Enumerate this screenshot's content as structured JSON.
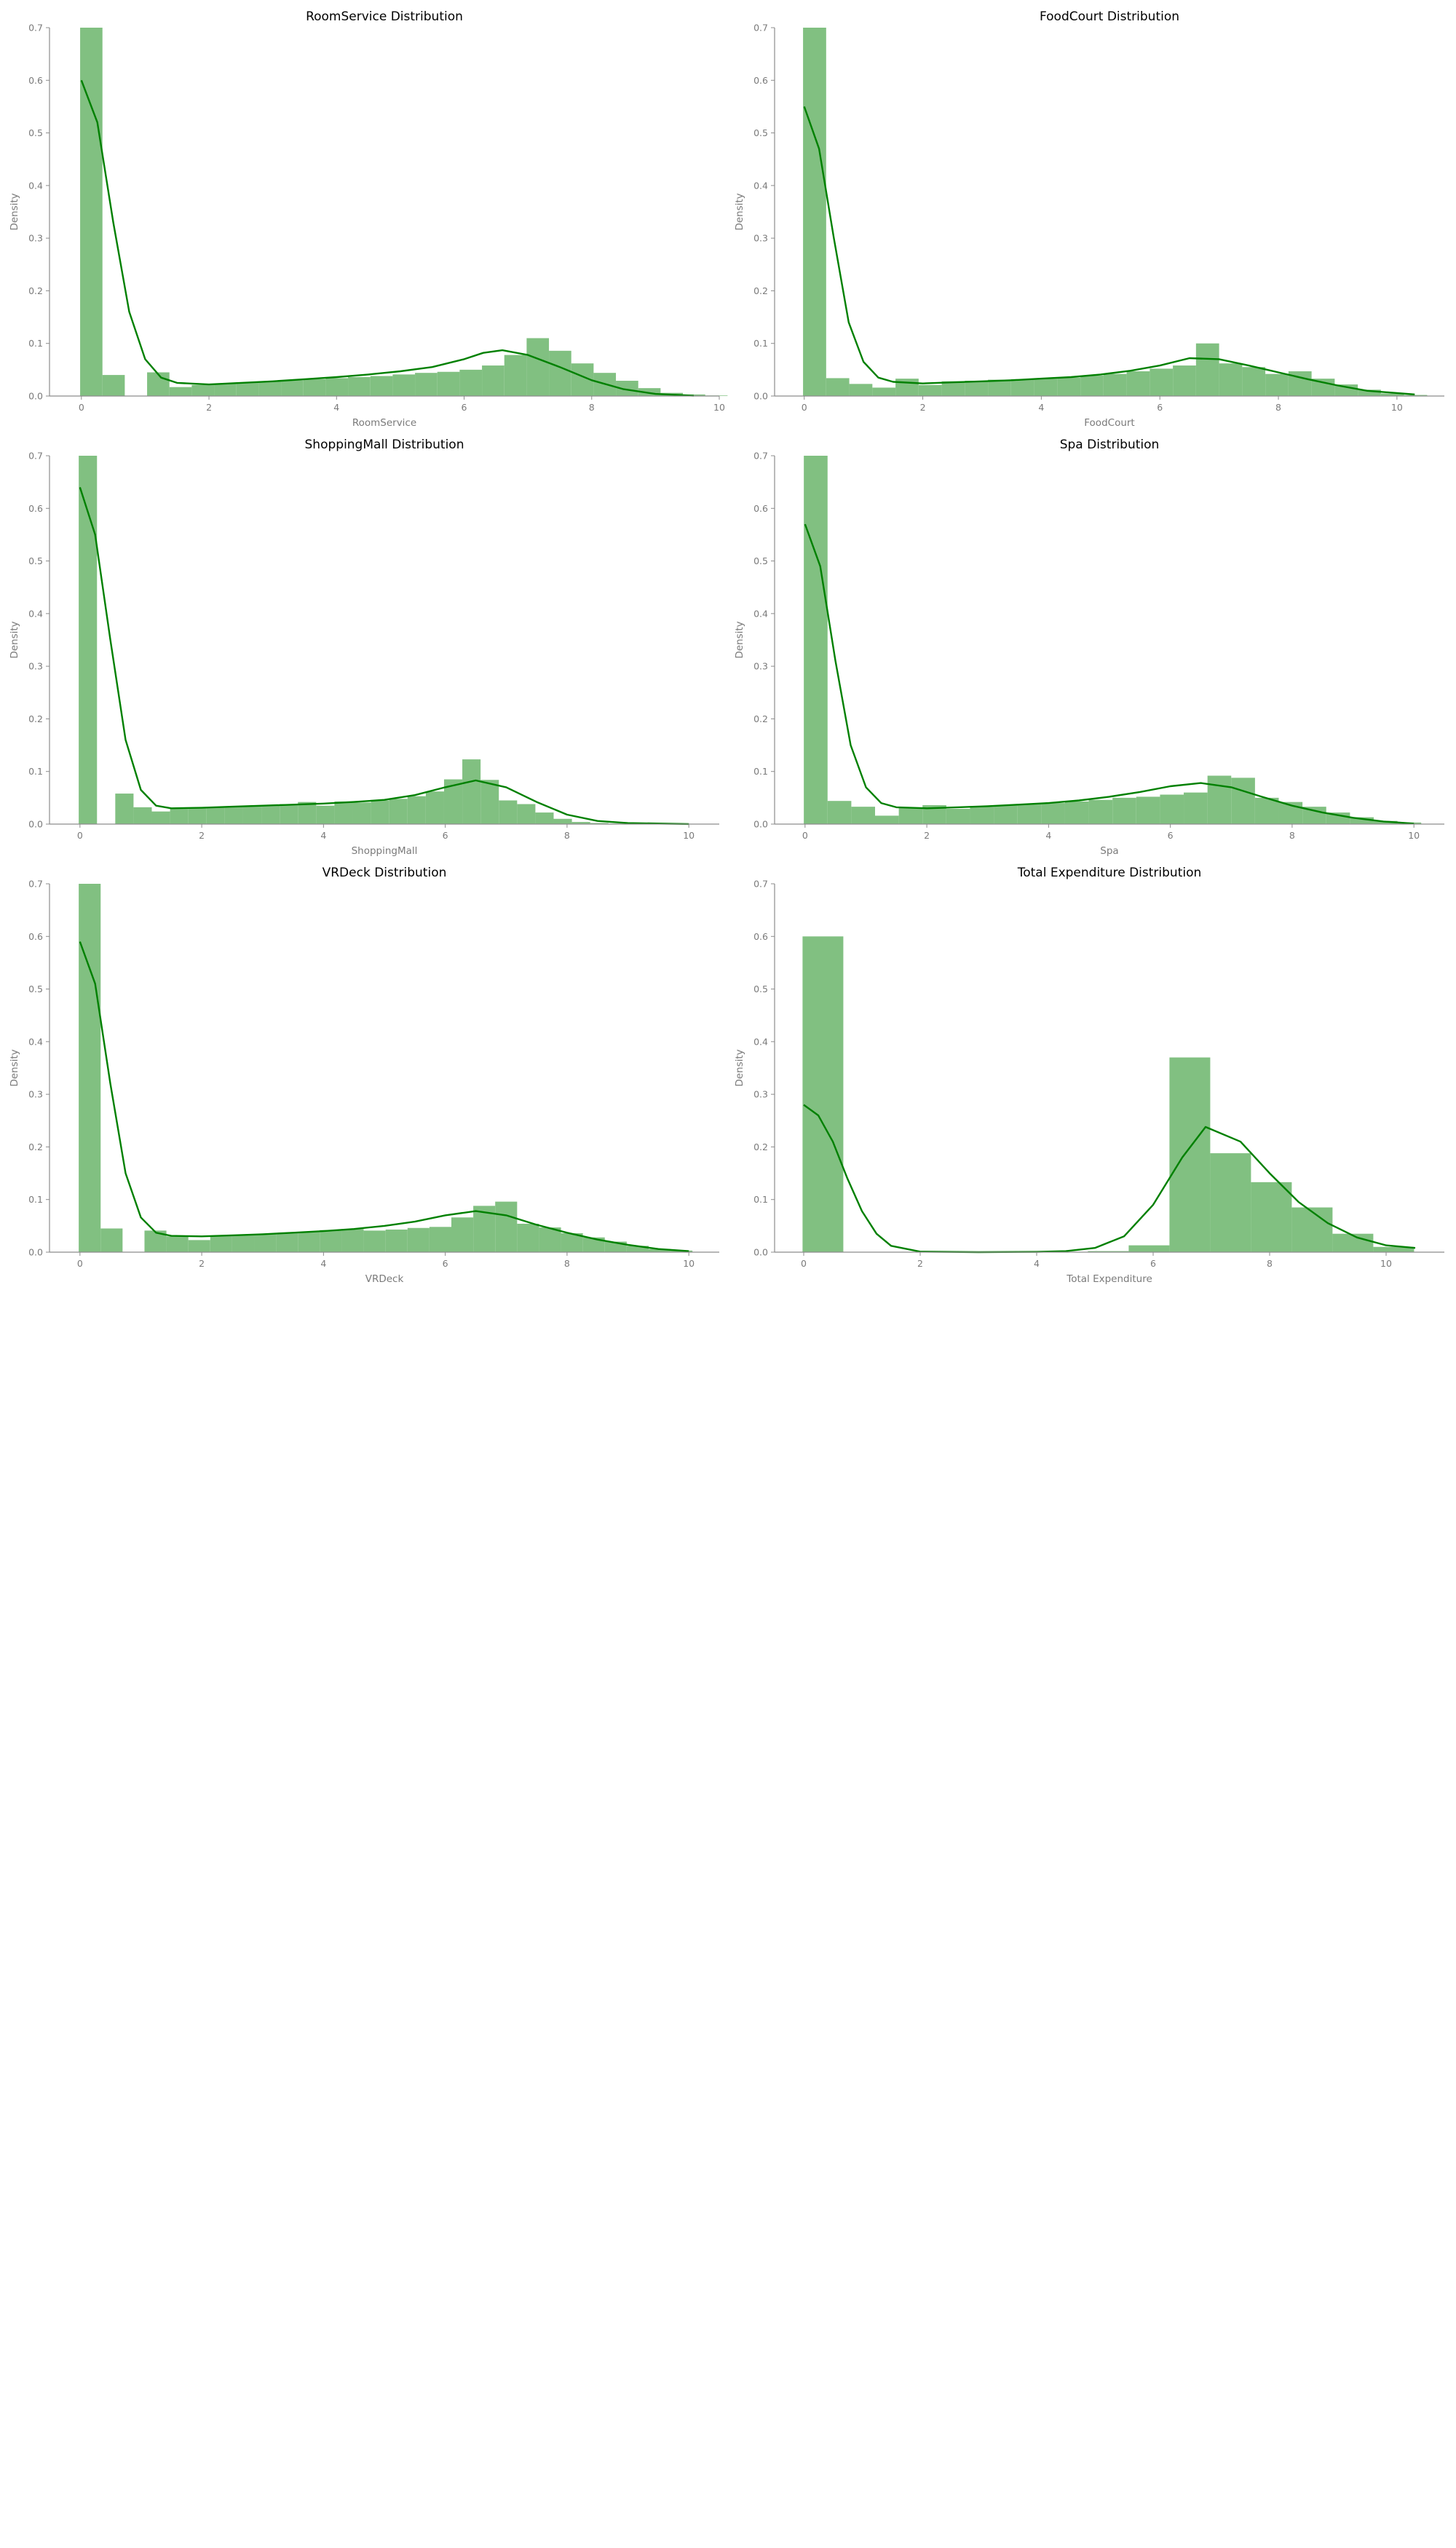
{
  "colors": {
    "bar": "#81c081",
    "kde": "#008000",
    "axis": "#8c8c8c",
    "text": "#7a7a7a",
    "title": "#000000"
  },
  "chart_data": [
    {
      "type": "bar",
      "title": "RoomService Distribution",
      "xlabel": "RoomService",
      "ylabel": "Density",
      "xlim": [
        -0.5,
        10
      ],
      "ylim": [
        0,
        0.7
      ],
      "xticks": [
        0,
        2,
        4,
        6,
        8,
        10
      ],
      "yticks": [
        0.0,
        0.1,
        0.2,
        0.3,
        0.4,
        0.5,
        0.6,
        0.7
      ],
      "bin_width": 0.35,
      "bin_start": -0.02,
      "densities": [
        0.7,
        0.04,
        0,
        0.045,
        0.017,
        0.021,
        0.024,
        0.026,
        0.028,
        0.03,
        0.032,
        0.034,
        0.036,
        0.038,
        0.041,
        0.044,
        0.046,
        0.05,
        0.058,
        0.078,
        0.11,
        0.086,
        0.062,
        0.044,
        0.029,
        0.015,
        0.006,
        0.003,
        0.001
      ],
      "kde": {
        "x": [
          0,
          0.25,
          0.5,
          0.75,
          1,
          1.25,
          1.5,
          2,
          2.5,
          3,
          3.5,
          4,
          4.5,
          5,
          5.5,
          6,
          6.3,
          6.6,
          7,
          7.5,
          8,
          8.5,
          9,
          9.6
        ],
        "y": [
          0.6,
          0.52,
          0.33,
          0.16,
          0.07,
          0.035,
          0.025,
          0.022,
          0.025,
          0.028,
          0.032,
          0.036,
          0.041,
          0.047,
          0.055,
          0.07,
          0.082,
          0.087,
          0.078,
          0.055,
          0.03,
          0.013,
          0.004,
          0.0005
        ]
      }
    },
    {
      "type": "bar",
      "title": "FoodCourt Distribution",
      "xlabel": "FoodCourt",
      "ylabel": "Density",
      "xlim": [
        -0.5,
        10.8
      ],
      "ylim": [
        0,
        0.7
      ],
      "xticks": [
        0,
        2,
        4,
        6,
        8,
        10
      ],
      "yticks": [
        0.0,
        0.1,
        0.2,
        0.3,
        0.4,
        0.5,
        0.6,
        0.7
      ],
      "bin_width": 0.39,
      "bin_start": -0.02,
      "densities": [
        0.7,
        0.034,
        0.023,
        0.016,
        0.033,
        0.021,
        0.028,
        0.029,
        0.031,
        0.032,
        0.033,
        0.035,
        0.039,
        0.042,
        0.047,
        0.052,
        0.058,
        0.1,
        0.062,
        0.055,
        0.042,
        0.047,
        0.033,
        0.022,
        0.012,
        0.005,
        0.002
      ],
      "kde": {
        "x": [
          0,
          0.25,
          0.5,
          0.75,
          1,
          1.25,
          1.5,
          2,
          2.5,
          3,
          3.5,
          4,
          4.5,
          5,
          5.5,
          6,
          6.5,
          7,
          7.5,
          8,
          8.5,
          9,
          9.5,
          10.3
        ],
        "y": [
          0.55,
          0.47,
          0.3,
          0.14,
          0.065,
          0.035,
          0.027,
          0.024,
          0.026,
          0.028,
          0.03,
          0.033,
          0.036,
          0.041,
          0.048,
          0.058,
          0.072,
          0.07,
          0.058,
          0.045,
          0.032,
          0.02,
          0.01,
          0.003
        ]
      }
    },
    {
      "type": "bar",
      "title": "ShoppingMall Distribution",
      "xlabel": "ShoppingMall",
      "ylabel": "Density",
      "xlim": [
        -0.5,
        10.5
      ],
      "ylim": [
        0,
        0.7
      ],
      "xticks": [
        0,
        2,
        4,
        6,
        8,
        10
      ],
      "yticks": [
        0.0,
        0.1,
        0.2,
        0.3,
        0.4,
        0.5,
        0.6,
        0.7
      ],
      "bin_width": 0.3,
      "bin_start": -0.02,
      "densities": [
        0.7,
        0,
        0.058,
        0.032,
        0.024,
        0.03,
        0.031,
        0.032,
        0.033,
        0.034,
        0.036,
        0.038,
        0.042,
        0.035,
        0.043,
        0.041,
        0.045,
        0.048,
        0.053,
        0.062,
        0.085,
        0.123,
        0.084,
        0.045,
        0.038,
        0.022,
        0.01,
        0.004,
        0.002,
        0.001
      ],
      "kde": {
        "x": [
          0,
          0.25,
          0.5,
          0.75,
          1,
          1.25,
          1.5,
          2,
          2.5,
          3,
          3.5,
          4,
          4.5,
          5,
          5.5,
          6,
          6.5,
          7,
          7.5,
          8,
          8.5,
          9,
          10
        ],
        "y": [
          0.64,
          0.55,
          0.35,
          0.16,
          0.065,
          0.035,
          0.03,
          0.031,
          0.033,
          0.035,
          0.037,
          0.039,
          0.042,
          0.046,
          0.055,
          0.07,
          0.083,
          0.07,
          0.042,
          0.018,
          0.006,
          0.002,
          0.0002
        ]
      }
    },
    {
      "type": "bar",
      "title": "Spa Distribution",
      "xlabel": "Spa",
      "ylabel": "Density",
      "xlim": [
        -0.5,
        10.5
      ],
      "ylim": [
        0,
        0.7
      ],
      "xticks": [
        0,
        2,
        4,
        6,
        8,
        10
      ],
      "yticks": [
        0.0,
        0.1,
        0.2,
        0.3,
        0.4,
        0.5,
        0.6,
        0.7
      ],
      "bin_width": 0.39,
      "bin_start": -0.02,
      "densities": [
        0.7,
        0.044,
        0.033,
        0.016,
        0.031,
        0.036,
        0.029,
        0.033,
        0.036,
        0.038,
        0.04,
        0.043,
        0.046,
        0.05,
        0.052,
        0.056,
        0.06,
        0.092,
        0.088,
        0.05,
        0.042,
        0.033,
        0.022,
        0.013,
        0.006,
        0.003
      ],
      "kde": {
        "x": [
          0,
          0.25,
          0.5,
          0.75,
          1,
          1.25,
          1.5,
          2,
          2.5,
          3,
          3.5,
          4,
          4.5,
          5,
          5.5,
          6,
          6.5,
          7,
          7.5,
          8,
          8.5,
          9,
          9.5,
          10
        ],
        "y": [
          0.57,
          0.49,
          0.31,
          0.15,
          0.07,
          0.04,
          0.032,
          0.03,
          0.032,
          0.034,
          0.037,
          0.04,
          0.045,
          0.052,
          0.061,
          0.072,
          0.078,
          0.07,
          0.052,
          0.035,
          0.022,
          0.012,
          0.005,
          0.001
        ]
      }
    },
    {
      "type": "bar",
      "title": "VRDeck Distribution",
      "xlabel": "VRDeck",
      "ylabel": "Density",
      "xlim": [
        -0.5,
        10.5
      ],
      "ylim": [
        0,
        0.7
      ],
      "xticks": [
        0,
        2,
        4,
        6,
        8,
        10
      ],
      "yticks": [
        0.0,
        0.1,
        0.2,
        0.3,
        0.4,
        0.5,
        0.6,
        0.7
      ],
      "bin_width": 0.36,
      "bin_start": -0.02,
      "densities": [
        0.7,
        0.045,
        0,
        0.041,
        0.03,
        0.023,
        0.031,
        0.032,
        0.034,
        0.036,
        0.038,
        0.042,
        0.044,
        0.041,
        0.043,
        0.046,
        0.048,
        0.066,
        0.088,
        0.096,
        0.054,
        0.047,
        0.036,
        0.028,
        0.02,
        0.012,
        0.006,
        0.003
      ],
      "kde": {
        "x": [
          0,
          0.25,
          0.5,
          0.75,
          1,
          1.25,
          1.5,
          2,
          2.5,
          3,
          3.5,
          4,
          4.5,
          5,
          5.5,
          6,
          6.5,
          7,
          7.5,
          8,
          8.5,
          9,
          9.5,
          10
        ],
        "y": [
          0.59,
          0.51,
          0.32,
          0.15,
          0.066,
          0.037,
          0.031,
          0.03,
          0.032,
          0.034,
          0.037,
          0.04,
          0.044,
          0.05,
          0.058,
          0.07,
          0.078,
          0.07,
          0.052,
          0.037,
          0.024,
          0.014,
          0.006,
          0.002
        ]
      }
    },
    {
      "type": "bar",
      "title": "Total Expenditure Distribution",
      "xlabel": "Total Expenditure",
      "ylabel": "Density",
      "xlim": [
        -0.5,
        11
      ],
      "ylim": [
        0,
        0.7
      ],
      "xticks": [
        0,
        2,
        4,
        6,
        8,
        10
      ],
      "yticks": [
        0.0,
        0.1,
        0.2,
        0.3,
        0.4,
        0.5,
        0.6,
        0.7
      ],
      "bin_width": 0.7,
      "bin_start": -0.02,
      "densities": [
        0.6,
        0,
        0,
        0,
        0,
        0,
        0,
        0.002,
        0.013,
        0.37,
        0.188,
        0.133,
        0.085,
        0.035,
        0.01
      ],
      "kde": {
        "x": [
          0,
          0.25,
          0.5,
          0.75,
          1,
          1.25,
          1.5,
          2,
          3,
          4,
          4.5,
          5,
          5.5,
          6,
          6.5,
          6.9,
          7.5,
          8,
          8.5,
          9,
          9.5,
          10,
          10.5
        ],
        "y": [
          0.28,
          0.26,
          0.21,
          0.14,
          0.078,
          0.035,
          0.012,
          0.001,
          0,
          0.0005,
          0.002,
          0.008,
          0.03,
          0.09,
          0.18,
          0.238,
          0.21,
          0.15,
          0.095,
          0.055,
          0.028,
          0.013,
          0.008
        ]
      }
    }
  ]
}
